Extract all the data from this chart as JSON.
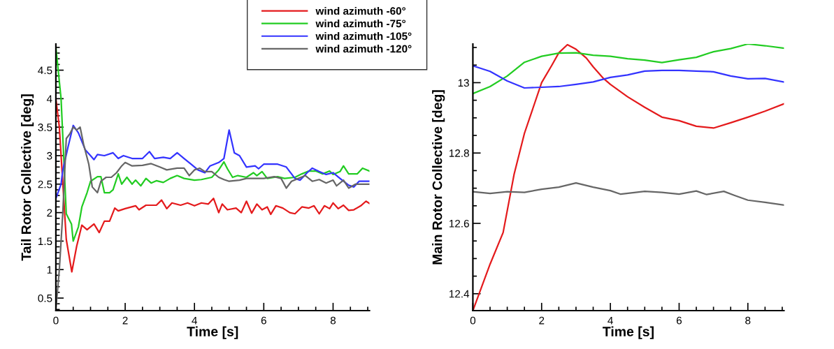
{
  "chart_data": [
    {
      "type": "line",
      "xlabel": "Time [s]",
      "ylabel": "Tail Rotor Collective [deg]",
      "legend": "top right",
      "grid": false,
      "xlim": [
        0,
        9.05
      ],
      "ylim": [
        0.28,
        4.96
      ],
      "xticks": [
        0,
        {
          "value": 0.5,
          "label": null
        },
        {
          "value": 1,
          "label": null
        },
        {
          "value": 1.5,
          "label": null
        },
        2,
        {
          "value": 2.5,
          "label": null
        },
        {
          "value": 3,
          "label": null
        },
        {
          "value": 3.5,
          "label": null
        },
        4,
        {
          "value": 4.5,
          "label": null
        },
        {
          "value": 5,
          "label": null
        },
        {
          "value": 5.5,
          "label": null
        },
        6,
        {
          "value": 6.5,
          "label": null
        },
        {
          "value": 7,
          "label": null
        },
        {
          "value": 7.5,
          "label": null
        },
        8,
        {
          "value": 8.5,
          "label": null
        },
        {
          "value": 9,
          "label": null
        }
      ],
      "yticks": [
        {
          "value": 0.3,
          "label": null
        },
        {
          "value": 0.4,
          "label": null
        },
        0.5,
        {
          "value": 0.6,
          "label": null
        },
        {
          "value": 0.7,
          "label": null
        },
        {
          "value": 0.8,
          "label": null
        },
        {
          "value": 0.9,
          "label": null
        },
        1,
        {
          "value": 1.1,
          "label": null
        },
        {
          "value": 1.2,
          "label": null
        },
        {
          "value": 1.3,
          "label": null
        },
        {
          "value": 1.4,
          "label": null
        },
        1.5,
        {
          "value": 1.6,
          "label": null
        },
        {
          "value": 1.7,
          "label": null
        },
        {
          "value": 1.8,
          "label": null
        },
        {
          "value": 1.9,
          "label": null
        },
        2,
        {
          "value": 2.1,
          "label": null
        },
        {
          "value": 2.2,
          "label": null
        },
        {
          "value": 2.3,
          "label": null
        },
        {
          "value": 2.4,
          "label": null
        },
        2.5,
        {
          "value": 2.6,
          "label": null
        },
        {
          "value": 2.7,
          "label": null
        },
        {
          "value": 2.8,
          "label": null
        },
        {
          "value": 2.9,
          "label": null
        },
        3,
        {
          "value": 3.1,
          "label": null
        },
        {
          "value": 3.2,
          "label": null
        },
        {
          "value": 3.3,
          "label": null
        },
        {
          "value": 3.4,
          "label": null
        },
        3.5,
        {
          "value": 3.6,
          "label": null
        },
        {
          "value": 3.7,
          "label": null
        },
        {
          "value": 3.8,
          "label": null
        },
        {
          "value": 3.9,
          "label": null
        },
        4,
        {
          "value": 4.1,
          "label": null
        },
        {
          "value": 4.2,
          "label": null
        },
        {
          "value": 4.3,
          "label": null
        },
        {
          "value": 4.4,
          "label": null
        },
        4.5,
        {
          "value": 4.6,
          "label": null
        },
        {
          "value": 4.7,
          "label": null
        },
        {
          "value": 4.8,
          "label": null
        },
        {
          "value": 4.9,
          "label": null
        }
      ],
      "series": [
        {
          "name": "wind azimuth -60°",
          "color": "#e41a1c",
          "x": [
            0,
            0.1,
            0.3,
            0.46,
            0.6,
            0.75,
            0.9,
            1.1,
            1.25,
            1.4,
            1.55,
            1.7,
            1.8,
            2.0,
            2.3,
            2.4,
            2.6,
            2.9,
            3.05,
            3.2,
            3.35,
            3.6,
            3.8,
            4.0,
            4.2,
            4.4,
            4.55,
            4.7,
            4.8,
            4.95,
            5.2,
            5.35,
            5.5,
            5.65,
            5.8,
            5.95,
            6.1,
            6.2,
            6.35,
            6.55,
            6.75,
            6.9,
            7.1,
            7.3,
            7.45,
            7.6,
            7.75,
            7.9,
            8.0,
            8.15,
            8.3,
            8.45,
            8.6,
            8.8,
            8.95,
            9.05
          ],
          "values": [
            4.0,
            3.5,
            1.53,
            0.96,
            1.41,
            1.78,
            1.7,
            1.8,
            1.65,
            1.85,
            1.85,
            2.08,
            2.03,
            2.07,
            2.12,
            2.05,
            2.13,
            2.13,
            2.22,
            2.07,
            2.17,
            2.13,
            2.17,
            2.12,
            2.17,
            2.15,
            2.25,
            2.0,
            2.15,
            2.05,
            2.08,
            2.0,
            2.2,
            1.99,
            2.15,
            2.05,
            2.1,
            1.97,
            2.12,
            2.08,
            2.0,
            1.98,
            2.1,
            2.08,
            2.12,
            1.98,
            2.12,
            2.07,
            2.17,
            2.07,
            2.13,
            2.04,
            2.05,
            2.12,
            2.2,
            2.16
          ]
        },
        {
          "name": "wind azimuth -75°",
          "color": "#22cc22",
          "x": [
            0,
            0.15,
            0.3,
            0.45,
            0.5,
            0.65,
            0.75,
            0.9,
            1.0,
            1.2,
            1.3,
            1.4,
            1.55,
            1.65,
            1.8,
            1.9,
            2.05,
            2.2,
            2.3,
            2.45,
            2.6,
            2.75,
            2.9,
            3.1,
            3.3,
            3.5,
            3.7,
            4.0,
            4.2,
            4.5,
            4.7,
            4.85,
            4.95,
            5.1,
            5.25,
            5.5,
            5.7,
            5.8,
            5.95,
            6.1,
            6.4,
            6.6,
            6.9,
            7.1,
            7.3,
            7.5,
            7.7,
            7.9,
            8.0,
            8.2,
            8.3,
            8.45,
            8.7,
            8.85,
            9.05
          ],
          "values": [
            4.9,
            4.0,
            1.98,
            1.8,
            1.5,
            1.75,
            2.1,
            2.35,
            2.55,
            2.63,
            2.63,
            2.35,
            2.35,
            2.4,
            2.68,
            2.5,
            2.62,
            2.5,
            2.57,
            2.47,
            2.6,
            2.52,
            2.56,
            2.53,
            2.6,
            2.65,
            2.6,
            2.57,
            2.58,
            2.62,
            2.75,
            2.89,
            2.77,
            2.62,
            2.65,
            2.62,
            2.7,
            2.65,
            2.72,
            2.6,
            2.63,
            2.6,
            2.62,
            2.68,
            2.73,
            2.73,
            2.68,
            2.73,
            2.67,
            2.72,
            2.82,
            2.68,
            2.68,
            2.78,
            2.73
          ]
        },
        {
          "name": "wind azimuth -105°",
          "color": "#3333ff",
          "x": [
            0,
            0.15,
            0.2,
            0.35,
            0.5,
            0.65,
            0.75,
            0.85,
            1.0,
            1.1,
            1.2,
            1.4,
            1.65,
            1.8,
            1.95,
            2.2,
            2.5,
            2.7,
            2.85,
            3.1,
            3.3,
            3.5,
            3.7,
            3.9,
            4.1,
            4.3,
            4.45,
            4.7,
            4.85,
            5.0,
            5.15,
            5.3,
            5.5,
            5.75,
            5.85,
            6.0,
            6.4,
            6.65,
            6.9,
            7.05,
            7.25,
            7.4,
            7.6,
            7.8,
            8.0,
            8.2,
            8.45,
            8.6,
            8.75,
            9.05
          ],
          "values": [
            2.25,
            2.5,
            2.75,
            3.15,
            3.53,
            3.4,
            3.25,
            3.1,
            3.0,
            2.93,
            3.02,
            3.0,
            3.05,
            2.95,
            3.0,
            2.95,
            2.95,
            3.07,
            2.95,
            2.97,
            2.95,
            3.05,
            2.95,
            2.85,
            2.75,
            2.7,
            2.82,
            2.88,
            2.95,
            3.45,
            3.05,
            3.0,
            2.8,
            2.82,
            2.77,
            2.85,
            2.85,
            2.8,
            2.6,
            2.57,
            2.7,
            2.78,
            2.72,
            2.67,
            2.7,
            2.6,
            2.48,
            2.45,
            2.55,
            2.55
          ]
        },
        {
          "name": "wind azimuth -120°",
          "color": "#666666",
          "x": [
            0,
            0.1,
            0.2,
            0.3,
            0.4,
            0.5,
            0.6,
            0.7,
            0.8,
            0.95,
            1.05,
            1.2,
            1.3,
            1.45,
            1.6,
            1.75,
            1.9,
            2.0,
            2.2,
            2.5,
            2.75,
            3.0,
            3.2,
            3.5,
            3.7,
            3.85,
            4.0,
            4.15,
            4.3,
            4.5,
            4.7,
            4.85,
            5.0,
            5.3,
            5.5,
            5.75,
            6.0,
            6.3,
            6.5,
            6.65,
            6.8,
            7.0,
            7.2,
            7.4,
            7.6,
            7.8,
            8.0,
            8.1,
            8.3,
            8.45,
            8.65,
            8.8,
            9.05
          ],
          "values": [
            0.3,
            1.0,
            2.0,
            3.3,
            3.38,
            3.5,
            3.45,
            3.5,
            3.2,
            2.85,
            2.45,
            2.35,
            2.55,
            2.62,
            2.62,
            2.7,
            2.82,
            2.88,
            2.82,
            2.83,
            2.86,
            2.8,
            2.75,
            2.78,
            2.78,
            2.65,
            2.75,
            2.78,
            2.72,
            2.72,
            2.62,
            2.58,
            2.55,
            2.57,
            2.6,
            2.6,
            2.6,
            2.63,
            2.6,
            2.43,
            2.55,
            2.6,
            2.65,
            2.55,
            2.58,
            2.52,
            2.57,
            2.47,
            2.57,
            2.43,
            2.5,
            2.5,
            2.5
          ]
        }
      ]
    },
    {
      "type": "line",
      "xlabel": "Time [s]",
      "ylabel": "Main Rotor Collective [deg]",
      "grid": false,
      "xlim": [
        0,
        9.05
      ],
      "ylim": [
        12.352,
        13.11
      ],
      "xticks": [
        0,
        {
          "value": 0.5,
          "label": null
        },
        {
          "value": 1,
          "label": null
        },
        {
          "value": 1.5,
          "label": null
        },
        2,
        {
          "value": 2.5,
          "label": null
        },
        {
          "value": 3,
          "label": null
        },
        {
          "value": 3.5,
          "label": null
        },
        4,
        {
          "value": 4.5,
          "label": null
        },
        {
          "value": 5,
          "label": null
        },
        {
          "value": 5.5,
          "label": null
        },
        6,
        {
          "value": 6.5,
          "label": null
        },
        {
          "value": 7,
          "label": null
        },
        {
          "value": 7.5,
          "label": null
        },
        8,
        {
          "value": 8.5,
          "label": null
        },
        {
          "value": 9,
          "label": null
        }
      ],
      "yticks": [
        12.4,
        {
          "value": 12.45,
          "label": null
        },
        {
          "value": 12.5,
          "label": null
        },
        {
          "value": 12.55,
          "label": null
        },
        12.6,
        {
          "value": 12.65,
          "label": null
        },
        {
          "value": 12.7,
          "label": null
        },
        {
          "value": 12.75,
          "label": null
        },
        12.8,
        {
          "value": 12.85,
          "label": null
        },
        {
          "value": 12.9,
          "label": null
        },
        {
          "value": 12.95,
          "label": null
        },
        13,
        {
          "value": 13.05,
          "label": null
        },
        {
          "value": 13.1,
          "label": null
        }
      ],
      "series": [
        {
          "color": "#e41a1c",
          "x": [
            0,
            0.5,
            0.88,
            1.2,
            1.5,
            2.0,
            2.3,
            2.5,
            2.75,
            3.0,
            3.3,
            3.5,
            3.8,
            4.0,
            4.5,
            5.0,
            5.5,
            6.0,
            6.5,
            7.0,
            7.5,
            8.0,
            8.5,
            9.05
          ],
          "values": [
            12.352,
            12.484,
            12.574,
            12.74,
            12.856,
            13.0,
            13.05,
            13.085,
            13.108,
            13.095,
            13.07,
            13.045,
            13.012,
            12.995,
            12.96,
            12.93,
            12.902,
            12.892,
            12.876,
            12.871,
            12.886,
            12.902,
            12.919,
            12.94
          ]
        },
        {
          "color": "#22cc22",
          "x": [
            0,
            0.5,
            1.0,
            1.5,
            2.0,
            2.5,
            3.0,
            3.5,
            4.0,
            4.5,
            5.0,
            5.5,
            6.0,
            6.5,
            7.0,
            7.5,
            8.0,
            8.5,
            9.05
          ],
          "values": [
            12.969,
            12.989,
            13.019,
            13.058,
            13.075,
            13.084,
            13.085,
            13.078,
            13.075,
            13.068,
            13.064,
            13.057,
            13.065,
            13.072,
            13.088,
            13.097,
            13.11,
            13.105,
            13.098
          ]
        },
        {
          "color": "#3333ff",
          "x": [
            0,
            0.5,
            1.0,
            1.5,
            2.0,
            2.5,
            3.0,
            3.5,
            4.0,
            4.5,
            5.0,
            5.5,
            6.0,
            6.5,
            7.0,
            7.5,
            8.0,
            8.5,
            9.05
          ],
          "values": [
            13.048,
            13.032,
            13.005,
            12.985,
            12.987,
            12.989,
            12.995,
            13.002,
            13.015,
            13.022,
            13.033,
            13.035,
            13.035,
            13.033,
            13.031,
            13.019,
            13.011,
            13.012,
            13.002
          ]
        },
        {
          "color": "#666666",
          "x": [
            0,
            0.5,
            1.0,
            1.5,
            2.0,
            2.5,
            3.0,
            3.5,
            4.0,
            4.3,
            5.0,
            5.5,
            6.0,
            6.5,
            6.8,
            7.3,
            7.6,
            8.0,
            8.5,
            9.05
          ],
          "values": [
            12.69,
            12.685,
            12.69,
            12.688,
            12.697,
            12.703,
            12.715,
            12.703,
            12.693,
            12.683,
            12.691,
            12.688,
            12.683,
            12.692,
            12.682,
            12.691,
            12.68,
            12.666,
            12.66,
            12.652
          ]
        }
      ]
    }
  ]
}
